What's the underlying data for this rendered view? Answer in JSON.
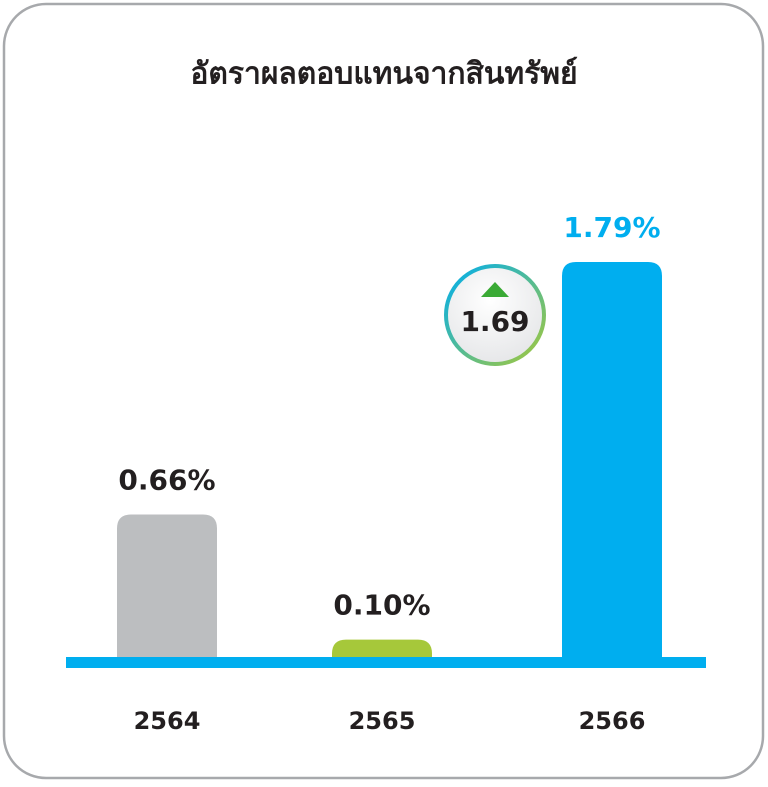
{
  "chart_data": {
    "type": "bar",
    "title": "อัตราผลตอบแทนจากสินทรัพย์",
    "categories": [
      "2564",
      "2565",
      "2566"
    ],
    "values": [
      0.66,
      0.1,
      1.79
    ],
    "value_labels": [
      "0.66%",
      "0.10%",
      "1.79%"
    ],
    "colors": [
      "#bcbec0",
      "#a6c83a",
      "#00aeef"
    ],
    "label_colors": [
      "#231f20",
      "#231f20",
      "#00aeef"
    ],
    "baseline_color": "#00aeef",
    "annotation": {
      "text": "1.69",
      "direction": "up",
      "color": "#3aaa35"
    }
  }
}
